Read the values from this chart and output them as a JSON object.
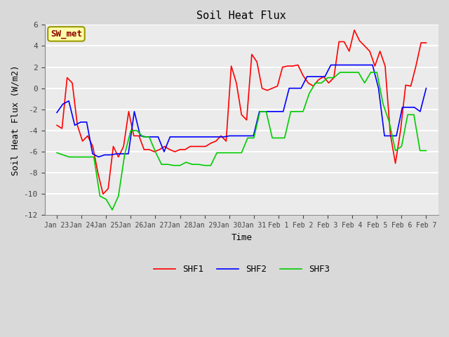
{
  "title": "Soil Heat Flux",
  "xlabel": "Time",
  "ylabel": "Soil Heat Flux (W/m2)",
  "ylim": [
    -12,
    6
  ],
  "yticks": [
    -12,
    -10,
    -8,
    -6,
    -4,
    -2,
    0,
    2,
    4,
    6
  ],
  "x_labels": [
    "Jan 23",
    "Jan 24",
    "Jan 25",
    "Jan 26",
    "Jan 27",
    "Jan 28",
    "Jan 29",
    "Jan 30",
    "Jan 31",
    "Feb 1",
    "Feb 2",
    "Feb 3",
    "Feb 4",
    "Feb 5",
    "Feb 6",
    "Feb 7"
  ],
  "annotation_text": "SW_met",
  "legend_labels": [
    "SHF1",
    "SHF2",
    "SHF3"
  ],
  "colors": {
    "SHF1": "#ff0000",
    "SHF2": "#0000ff",
    "SHF3": "#00cc00"
  },
  "bg_color": "#d9d9d9",
  "plot_bg": "#ebebeb",
  "shf1": [
    -3.5,
    -3.8,
    1.0,
    0.5,
    -3.5,
    -5.0,
    -4.5,
    -5.5,
    -8.0,
    -10.0,
    -9.5,
    -5.5,
    -6.5,
    -5.5,
    -2.2,
    -4.5,
    -4.5,
    -5.8,
    -5.8,
    -6.0,
    -5.8,
    -5.5,
    -5.8,
    -6.0,
    -5.8,
    -5.8,
    -5.5,
    -5.5,
    -5.5,
    -5.5,
    -5.2,
    -5.0,
    -4.5,
    -5.0,
    2.1,
    0.5,
    -2.5,
    -3.0,
    3.2,
    2.5,
    0.0,
    -0.2,
    0.0,
    0.2,
    2.0,
    2.1,
    2.1,
    2.2,
    1.2,
    0.5,
    0.2,
    0.8,
    1.1,
    0.5,
    1.0,
    4.4,
    4.4,
    3.5,
    5.5,
    4.5,
    4.0,
    3.5,
    2.1,
    3.5,
    2.1,
    -4.3,
    -7.1,
    -4.0,
    0.3,
    0.2,
    2.1,
    4.3,
    4.3
  ],
  "shf2": [
    -2.3,
    -1.5,
    -1.2,
    -3.5,
    -3.2,
    -3.2,
    -6.2,
    -6.5,
    -6.3,
    -6.3,
    -6.2,
    -6.2,
    -6.2,
    -2.2,
    -4.5,
    -4.6,
    -4.6,
    -4.6,
    -6.0,
    -4.6,
    -4.6,
    -4.6,
    -4.6,
    -4.6,
    -4.6,
    -4.6,
    -4.6,
    -4.6,
    -4.6,
    -4.5,
    -4.5,
    -4.5,
    -4.5,
    -4.5,
    -2.2,
    -2.2,
    -2.2,
    -2.2,
    -2.2,
    0.0,
    0.0,
    0.0,
    1.1,
    1.1,
    1.1,
    1.1,
    2.2,
    2.2,
    2.2,
    2.2,
    2.2,
    2.2,
    2.2,
    2.2,
    0.0,
    -4.5,
    -4.5,
    -4.5,
    -1.8,
    -1.8,
    -1.8,
    -2.2,
    0.0
  ],
  "shf3": [
    -6.1,
    -6.3,
    -6.5,
    -6.5,
    -6.5,
    -6.5,
    -6.5,
    -10.2,
    -10.5,
    -11.5,
    -10.2,
    -6.3,
    -4.0,
    -4.0,
    -4.6,
    -4.6,
    -6.0,
    -7.2,
    -7.2,
    -7.3,
    -7.3,
    -7.0,
    -7.2,
    -7.2,
    -7.3,
    -7.3,
    -6.1,
    -6.1,
    -6.1,
    -6.1,
    -6.1,
    -4.7,
    -4.7,
    -2.2,
    -2.2,
    -4.7,
    -4.7,
    -4.7,
    -2.2,
    -2.2,
    -2.2,
    -0.5,
    0.5,
    0.5,
    1.0,
    1.0,
    1.5,
    1.5,
    1.5,
    1.5,
    0.5,
    1.5,
    1.5,
    -1.5,
    -3.2,
    -5.9,
    -5.5,
    -2.5,
    -2.5,
    -5.9,
    -5.9
  ]
}
